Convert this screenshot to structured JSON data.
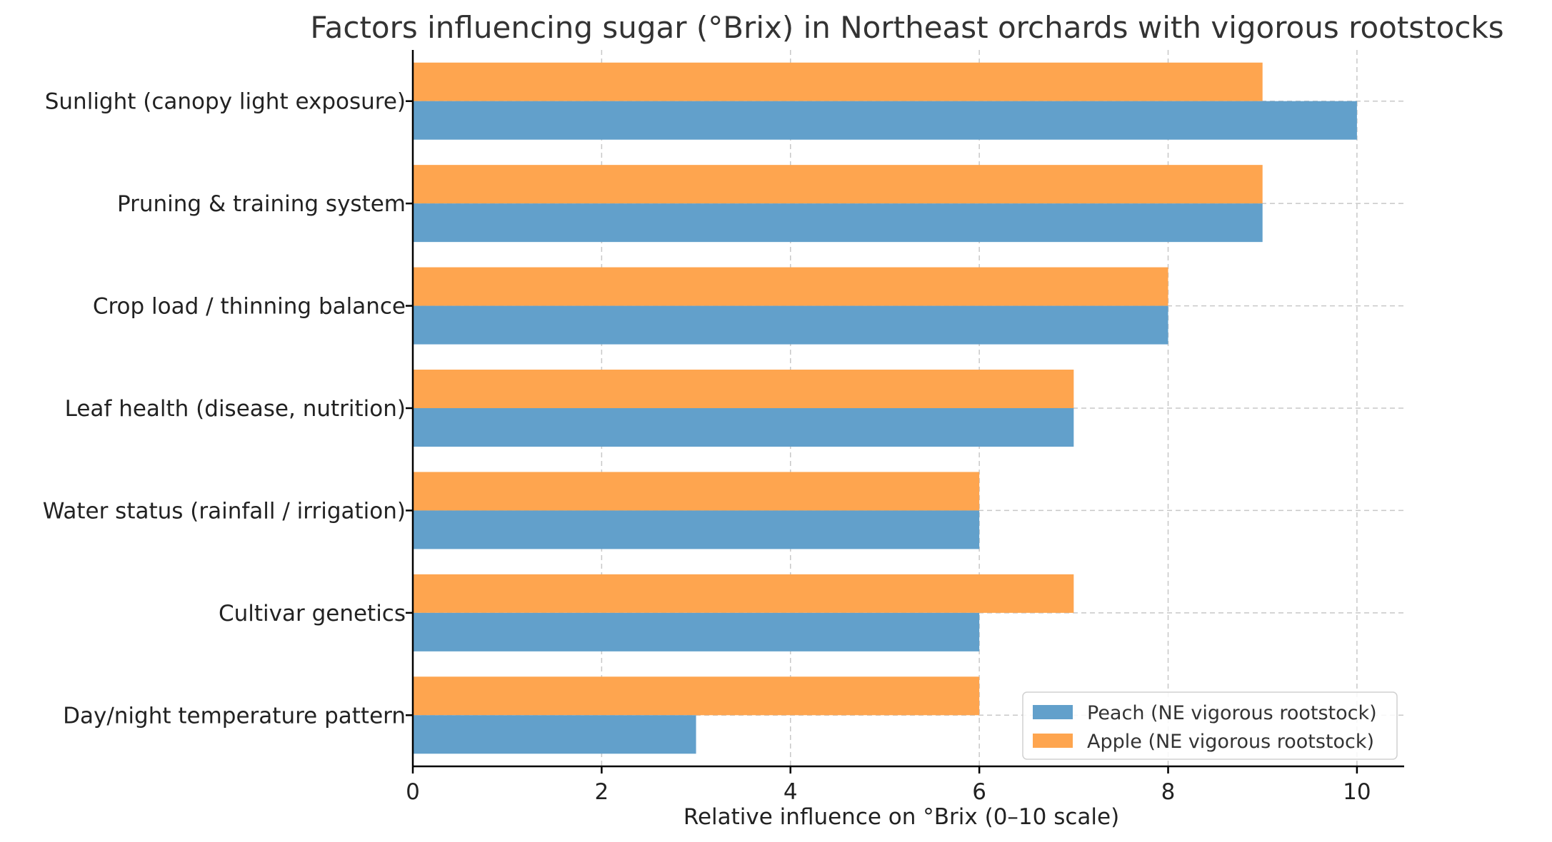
{
  "chart_data": {
    "type": "bar",
    "orientation": "horizontal",
    "title": "Factors influencing sugar (°Brix) in Northeast orchards with vigorous rootstocks",
    "xlabel": "Relative influence on °Brix (0–10 scale)",
    "ylabel": "",
    "xlim": [
      0,
      10.5
    ],
    "xticks": [
      0,
      2,
      4,
      6,
      8,
      10
    ],
    "grid": true,
    "legend_position": "bottom-right",
    "categories": [
      "Sunlight (canopy light exposure)",
      "Pruning & training system",
      "Crop load / thinning balance",
      "Leaf health (disease, nutrition)",
      "Water status (rainfall / irrigation)",
      "Cultivar genetics",
      "Day/night temperature pattern"
    ],
    "series": [
      {
        "name": "Peach (NE vigorous rootstock)",
        "color": "#62a0cb",
        "values": [
          10,
          9,
          8,
          7,
          6,
          6,
          3
        ]
      },
      {
        "name": "Apple (NE vigorous rootstock)",
        "color": "#fea54f",
        "values": [
          9,
          9,
          8,
          7,
          6,
          7,
          6
        ]
      }
    ]
  }
}
